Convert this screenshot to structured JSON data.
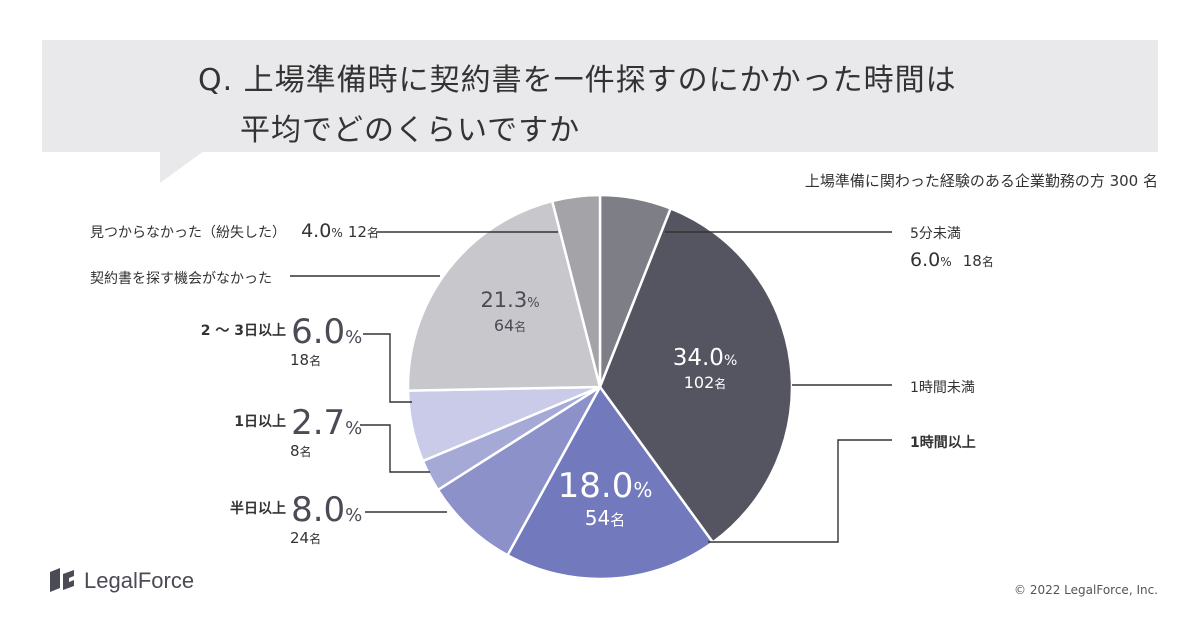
{
  "question": {
    "line1": "Q. 上場準備時に契約書を一件探すのにかかった時間は",
    "line2": "平均でどのくらいですか"
  },
  "respondents": "上場準備に関わった経験のある企業勤務の方 300 名",
  "colors": {
    "banner": "#e9e9eb",
    "lt5min": "#7d7e86",
    "lt1h": "#545561",
    "ge1h": "#7279bd",
    "halfday": "#8c91ca",
    "oneday": "#a5a9d6",
    "days2to3": "#c9cbe8",
    "none": "#c8c8cc",
    "lost": "#a3a3a8"
  },
  "chart_data": {
    "type": "pie",
    "title": "Q. 上場準備時に契約書を一件探すのにかかった時間は平均でどのくらいですか",
    "unit": "%",
    "slices": [
      {
        "key": "lt5min",
        "label": "5分未満",
        "value": 6.0,
        "count": 18
      },
      {
        "key": "lt1h",
        "label": "1時間未満",
        "value": 34.0,
        "count": 102
      },
      {
        "key": "ge1h",
        "label": "1時間以上",
        "value": 18.0,
        "count": 54
      },
      {
        "key": "halfday",
        "label": "半日以上",
        "value": 8.0,
        "count": 24
      },
      {
        "key": "oneday",
        "label": "1日以上",
        "value": 2.7,
        "count": 8
      },
      {
        "key": "days2to3",
        "label": "2 〜 3日以上",
        "value": 6.0,
        "count": 18
      },
      {
        "key": "none",
        "label": "契約書を探す機会がなかった",
        "value": 21.3,
        "count": 64
      },
      {
        "key": "lost",
        "label": "見つからなかった（紛失した）",
        "value": 4.0,
        "count": 12
      }
    ]
  },
  "labels": {
    "lt5min": {
      "name": "5分未満",
      "pct": "6.0",
      "unit": "%",
      "count": "18",
      "count_unit": "名"
    },
    "lt1h": {
      "name": "1時間未満",
      "pct": "34.0",
      "unit": "%",
      "count": "102",
      "count_unit": "名"
    },
    "ge1h": {
      "name": "1時間以上",
      "pct": "18.0",
      "unit": "%",
      "count": "54",
      "count_unit": "名"
    },
    "halfday": {
      "name": "半日以上",
      "pct": "8.0",
      "unit": "%",
      "count": "24",
      "count_unit": "名"
    },
    "oneday": {
      "name": "1日以上",
      "pct": "2.7",
      "unit": "%",
      "count": "8",
      "count_unit": "名"
    },
    "days2to3": {
      "name": "2 〜 3日以上",
      "pct": "6.0",
      "unit": "%",
      "count": "18",
      "count_unit": "名"
    },
    "none": {
      "name": "契約書を探す機会がなかった",
      "pct": "21.3",
      "unit": "%",
      "count": "64",
      "count_unit": "名"
    },
    "lost": {
      "name": "見つからなかった（紛失した）",
      "pct": "4.0",
      "unit": "%",
      "count": "12",
      "count_unit": "名"
    }
  },
  "logo": {
    "text": "LegalForce"
  },
  "copyright": "© 2022 LegalForce, Inc."
}
